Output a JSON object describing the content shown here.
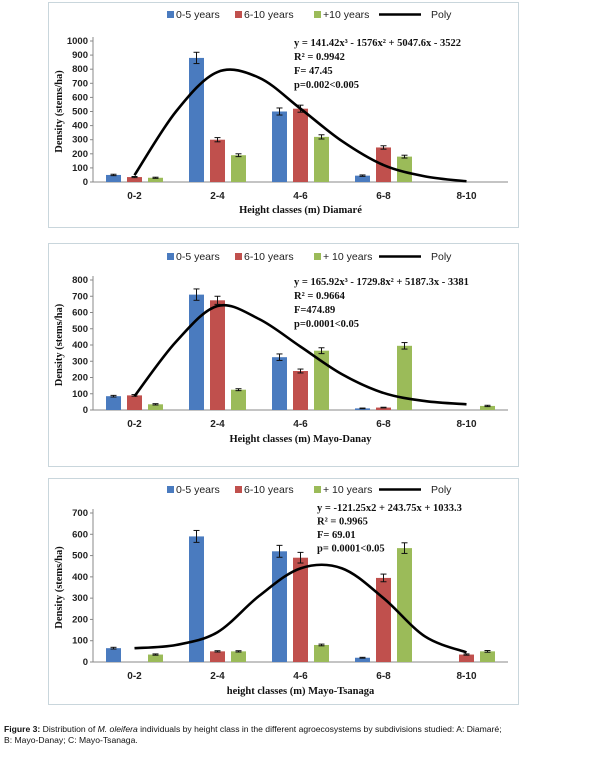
{
  "charts": [
    {
      "type": "bar",
      "categories": [
        "0-2",
        "2-4",
        "4-6",
        "6-8",
        "8-10"
      ],
      "series": [
        {
          "name": "0-5 years",
          "color": "#4a7bbf",
          "values": [
            50,
            880,
            500,
            45,
            0
          ],
          "errors": [
            5,
            40,
            25,
            5,
            0
          ]
        },
        {
          "name": "6-10 years",
          "color": "#c0504d",
          "values": [
            35,
            300,
            520,
            245,
            0
          ],
          "errors": [
            4,
            15,
            25,
            12,
            0
          ]
        },
        {
          "name": "+10 years",
          "color": "#9bbb59",
          "values": [
            30,
            190,
            320,
            180,
            0
          ],
          "errors": [
            4,
            10,
            15,
            10,
            0
          ]
        }
      ],
      "poly_name": "Poly",
      "poly_points": [
        [
          0,
          48
        ],
        [
          0.5,
          500
        ],
        [
          1,
          780
        ],
        [
          1.5,
          740
        ],
        [
          2,
          520
        ],
        [
          2.5,
          290
        ],
        [
          3,
          120
        ],
        [
          3.5,
          40
        ],
        [
          4,
          5
        ]
      ],
      "ylim": [
        0,
        1000
      ],
      "yticks": [
        0,
        100,
        200,
        300,
        400,
        500,
        600,
        700,
        800,
        900,
        1000
      ],
      "ylabel": "Density (stems/ha)",
      "xlabel": "Height classes (m) Diamaré",
      "legend_position": "top",
      "annotations": [
        "y = 141.42x³ - 1576x² + 5047.6x - 3522",
        "R² = 0.9942",
        "F= 47.45",
        "p=0.002<0.005"
      ]
    },
    {
      "type": "bar",
      "categories": [
        "0-2",
        "2-4",
        "4-6",
        "6-8",
        "8-10"
      ],
      "series": [
        {
          "name": "0-5 years",
          "color": "#4a7bbf",
          "values": [
            85,
            710,
            325,
            10,
            0
          ],
          "errors": [
            5,
            35,
            20,
            2,
            0
          ]
        },
        {
          "name": "6-10 years",
          "color": "#c0504d",
          "values": [
            90,
            675,
            240,
            15,
            0
          ],
          "errors": [
            5,
            25,
            12,
            2,
            0
          ]
        },
        {
          "name": "+ 10 years",
          "color": "#9bbb59",
          "values": [
            35,
            125,
            365,
            395,
            25
          ],
          "errors": [
            4,
            6,
            18,
            20,
            4
          ]
        }
      ],
      "poly_name": "Poly",
      "poly_points": [
        [
          0,
          85
        ],
        [
          0.5,
          420
        ],
        [
          1,
          640
        ],
        [
          1.5,
          560
        ],
        [
          2,
          390
        ],
        [
          2.5,
          220
        ],
        [
          3,
          105
        ],
        [
          3.5,
          55
        ],
        [
          4,
          35
        ]
      ],
      "ylim": [
        0,
        800
      ],
      "yticks": [
        0,
        100,
        200,
        300,
        400,
        500,
        600,
        700,
        800
      ],
      "ylabel": "Density (stems/ha)",
      "xlabel": "Height classes (m) Mayo-Danay",
      "legend_position": "top",
      "annotations": [
        "y = 165.92x³ - 1729.8x² + 5187.3x - 3381",
        "R² = 0.9664",
        "F=474.89",
        "p=0.0001<0.05"
      ]
    },
    {
      "type": "bar",
      "categories": [
        "0-2",
        "2-4",
        "4-6",
        "6-8",
        "8-10"
      ],
      "series": [
        {
          "name": "0-5 years",
          "color": "#4a7bbf",
          "values": [
            65,
            590,
            520,
            20,
            0
          ],
          "errors": [
            4,
            28,
            28,
            2,
            0
          ]
        },
        {
          "name": "6-10 years",
          "color": "#c0504d",
          "values": [
            0,
            50,
            490,
            395,
            35
          ],
          "errors": [
            0,
            3,
            25,
            18,
            3
          ]
        },
        {
          "name": "+ 10 years",
          "color": "#9bbb59",
          "values": [
            35,
            50,
            80,
            535,
            50
          ],
          "errors": [
            3,
            3,
            4,
            25,
            4
          ]
        }
      ],
      "poly_name": "Poly",
      "poly_points": [
        [
          0,
          65
        ],
        [
          0.5,
          80
        ],
        [
          1,
          140
        ],
        [
          1.5,
          310
        ],
        [
          2,
          440
        ],
        [
          2.5,
          440
        ],
        [
          3,
          300
        ],
        [
          3.5,
          120
        ],
        [
          4,
          45
        ]
      ],
      "ylim": [
        0,
        700
      ],
      "yticks": [
        0,
        100,
        200,
        300,
        400,
        500,
        600,
        700
      ],
      "ylabel": "Density (stems/ha)",
      "xlabel": "height classes (m) Mayo-Tsanaga",
      "legend_position": "top",
      "annotations": [
        "y = -121.25x2 + 243.75x + 1033.3",
        "R² = 0.9965",
        "F=  69.01",
        "p= 0.0001<0.05"
      ]
    }
  ],
  "caption": {
    "prefix": "Figure 3:",
    "text_before": " Distribution of ",
    "species": "M. oleifera",
    "text_after": " individuals by height class in the different agroecosystems by subdivisions studied: A: Diamaré;",
    "line2": "B: Mayo-Danay; C: Mayo-Tsanaga."
  }
}
